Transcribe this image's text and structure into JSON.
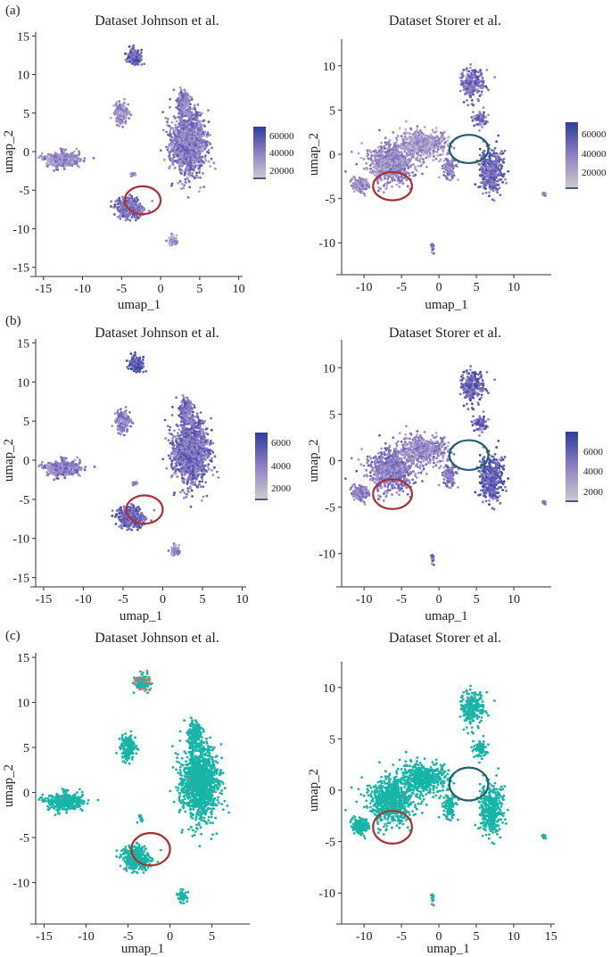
{
  "figure": {
    "panels": [
      {
        "label": "(a)",
        "colorbar_ticks": [
          "60000",
          "40000",
          "20000"
        ],
        "colorbar_max": 70000,
        "colorbar_min": 5000
      },
      {
        "label": "(b)",
        "colorbar_ticks": [
          "6000",
          "4000",
          "2000"
        ],
        "colorbar_max": 7000,
        "colorbar_min": 1000
      },
      {
        "label": "(c)"
      }
    ]
  },
  "chart_data": [
    {
      "type": "scatter",
      "panel": "(a)",
      "title": "Dataset Johnson et al.",
      "xlabel": "umap_1",
      "ylabel": "umap_2",
      "xlim": [
        -16,
        10.5
      ],
      "ylim": [
        -15.5,
        15.5
      ],
      "xticks": [
        "-15",
        "-10",
        "-5",
        "0",
        "5",
        "10"
      ],
      "yticks": [
        "15",
        "10",
        "5",
        "0",
        "-5",
        "-10",
        "-15"
      ],
      "color_mode": "continuous",
      "colorbar": {
        "ticks": [
          60000,
          40000,
          20000
        ],
        "min": 5000,
        "max": 70000
      },
      "circles": [
        {
          "x": -2.3,
          "y": -6.3,
          "rx": 2.3,
          "ry": 1.8,
          "color": "#a83232"
        }
      ]
    },
    {
      "type": "scatter",
      "panel": "(a)",
      "title": "Dataset Storer et al.",
      "xlabel": "umap_1",
      "ylabel": "umap_2",
      "xlim": [
        -13,
        15
      ],
      "ylim": [
        -13,
        13
      ],
      "xticks": [
        "-10",
        "-5",
        "0",
        "5",
        "10"
      ],
      "yticks": [
        "10",
        "5",
        "0",
        "-5",
        "-10"
      ],
      "color_mode": "continuous",
      "colorbar": {
        "ticks": [
          60000,
          40000,
          20000
        ],
        "min": 5000,
        "max": 70000
      },
      "circles": [
        {
          "x": -6.2,
          "y": -3.6,
          "rx": 2.6,
          "ry": 1.6,
          "color": "#a83232"
        },
        {
          "x": 4.0,
          "y": 0.6,
          "rx": 2.6,
          "ry": 1.6,
          "color": "#1f5f6b"
        }
      ]
    },
    {
      "type": "scatter",
      "panel": "(b)",
      "title": "Dataset Johnson et al.",
      "xlabel": "umap_1",
      "ylabel": "umap_2",
      "xlim": [
        -16,
        10.5
      ],
      "ylim": [
        -15.5,
        15.5
      ],
      "xticks": [
        "-15",
        "-10",
        "-5",
        "0",
        "5",
        "10"
      ],
      "yticks": [
        "15",
        "10",
        "5",
        "0",
        "-5",
        "-10",
        "-15"
      ],
      "color_mode": "continuous",
      "colorbar": {
        "ticks": [
          6000,
          4000,
          2000
        ],
        "min": 1000,
        "max": 7000
      },
      "circles": [
        {
          "x": -2.3,
          "y": -6.3,
          "rx": 2.3,
          "ry": 1.8,
          "color": "#a83232"
        }
      ]
    },
    {
      "type": "scatter",
      "panel": "(b)",
      "title": "Dataset Storer et al.",
      "xlabel": "umap_1",
      "ylabel": "umap_2",
      "xlim": [
        -13,
        15
      ],
      "ylim": [
        -13,
        13
      ],
      "xticks": [
        "-10",
        "-5",
        "0",
        "5",
        "10"
      ],
      "yticks": [
        "10",
        "5",
        "0",
        "-5",
        "-10"
      ],
      "color_mode": "continuous",
      "colorbar": {
        "ticks": [
          6000,
          4000,
          2000
        ],
        "min": 1000,
        "max": 7000
      },
      "circles": [
        {
          "x": -6.2,
          "y": -3.6,
          "rx": 2.6,
          "ry": 1.6,
          "color": "#a83232"
        },
        {
          "x": 4.0,
          "y": 0.6,
          "rx": 2.6,
          "ry": 1.6,
          "color": "#1f5f6b"
        }
      ]
    },
    {
      "type": "scatter",
      "panel": "(c)",
      "title": "Dataset Johnson et al.",
      "xlabel": "umap_1",
      "ylabel": "umap_2",
      "xlim": [
        -16,
        9.5
      ],
      "ylim": [
        -14,
        15.5
      ],
      "xticks": [
        "-15",
        "-10",
        "-5",
        "0",
        "5"
      ],
      "yticks": [
        "15",
        "10",
        "5",
        "0",
        "-5",
        "-10"
      ],
      "color_mode": "categorical",
      "colors": {
        "main": "#17b5a8",
        "highlight": "#f06a5e"
      },
      "circles": [
        {
          "x": -2.3,
          "y": -6.3,
          "rx": 2.3,
          "ry": 1.8,
          "color": "#a83232"
        }
      ]
    },
    {
      "type": "scatter",
      "panel": "(c)",
      "title": "Dataset Storer et al.",
      "xlabel": "umap_1",
      "ylabel": "umap_2",
      "xlim": [
        -13,
        15.5
      ],
      "ylim": [
        -12.5,
        12.5
      ],
      "xticks": [
        "-10",
        "-5",
        "0",
        "5",
        "10",
        "15"
      ],
      "yticks": [
        "10",
        "5",
        "0",
        "-5",
        "-10"
      ],
      "color_mode": "categorical",
      "colors": {
        "main": "#17b5a8",
        "highlight": "#f06a5e"
      },
      "circles": [
        {
          "x": -6.2,
          "y": -3.6,
          "rx": 2.6,
          "ry": 1.6,
          "color": "#a83232"
        },
        {
          "x": 4.0,
          "y": 0.6,
          "rx": 2.6,
          "ry": 1.6,
          "color": "#1f5f6b"
        }
      ]
    }
  ]
}
